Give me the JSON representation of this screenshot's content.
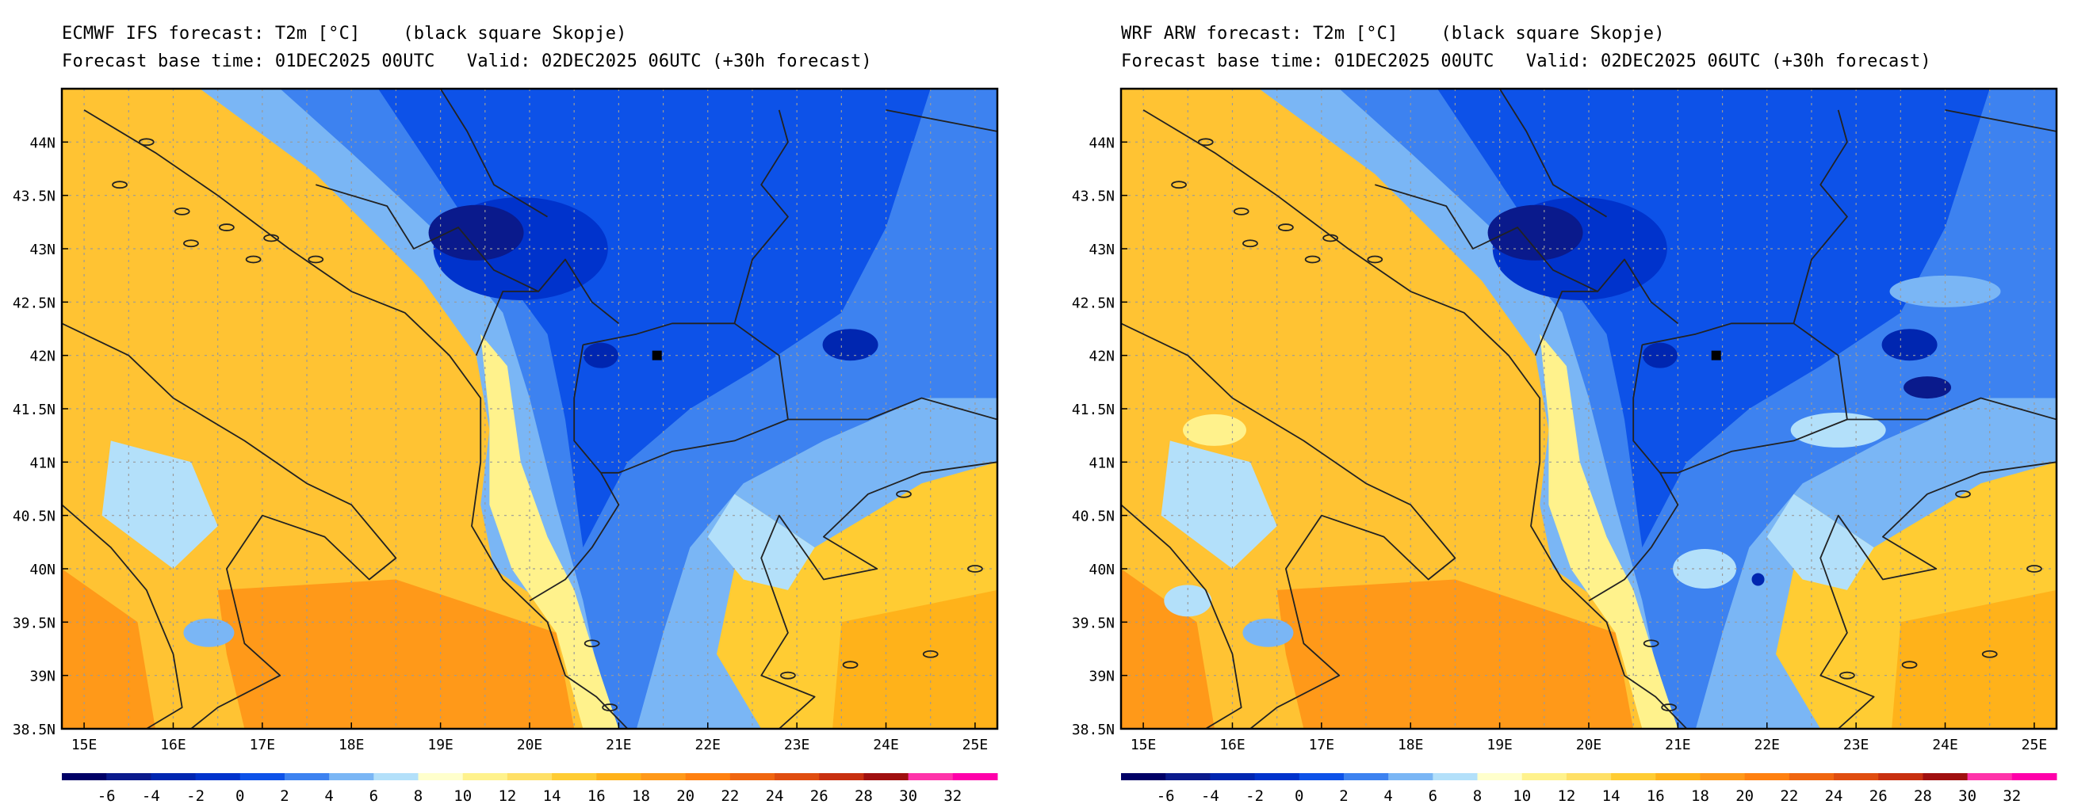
{
  "panels": [
    {
      "title_line1": "ECMWF IFS forecast: T2m [°C]    (black square Skopje)",
      "title_line2": "Forecast base time: 01DEC2025 00UTC   Valid: 02DEC2025 06UTC (+30h forecast)"
    },
    {
      "title_line1": "WRF ARW forecast: T2m [°C]    (black square Skopje)",
      "title_line2": "Forecast base time: 01DEC2025 00UTC   Valid: 02DEC2025 06UTC (+30h forecast)"
    }
  ],
  "lat_labels": [
    "44N",
    "43.5N",
    "43N",
    "42.5N",
    "42N",
    "41.5N",
    "41N",
    "40.5N",
    "40N",
    "39.5N",
    "39N",
    "38.5N"
  ],
  "lon_labels": [
    "15E",
    "16E",
    "17E",
    "18E",
    "19E",
    "20E",
    "21E",
    "22E",
    "23E",
    "24E",
    "25E"
  ],
  "colorbar": {
    "labels": [
      "-6",
      "-4",
      "-2",
      "0",
      "2",
      "4",
      "6",
      "8",
      "10",
      "12",
      "14",
      "16",
      "18",
      "20",
      "22",
      "24",
      "26",
      "28",
      "30",
      "32"
    ],
    "colors": [
      "#000066",
      "#0a1a8c",
      "#0026b0",
      "#0033cc",
      "#0d52e8",
      "#3d82f0",
      "#7ab6f5",
      "#b3e0fa",
      "#ffffcc",
      "#fff28c",
      "#ffe066",
      "#ffcc33",
      "#ffb21a",
      "#ff9919",
      "#ff8010",
      "#f06610",
      "#e04d10",
      "#c83010",
      "#a01010",
      "#ff33aa",
      "#ff00aa"
    ]
  },
  "marker": {
    "name": "Skopje"
  }
}
